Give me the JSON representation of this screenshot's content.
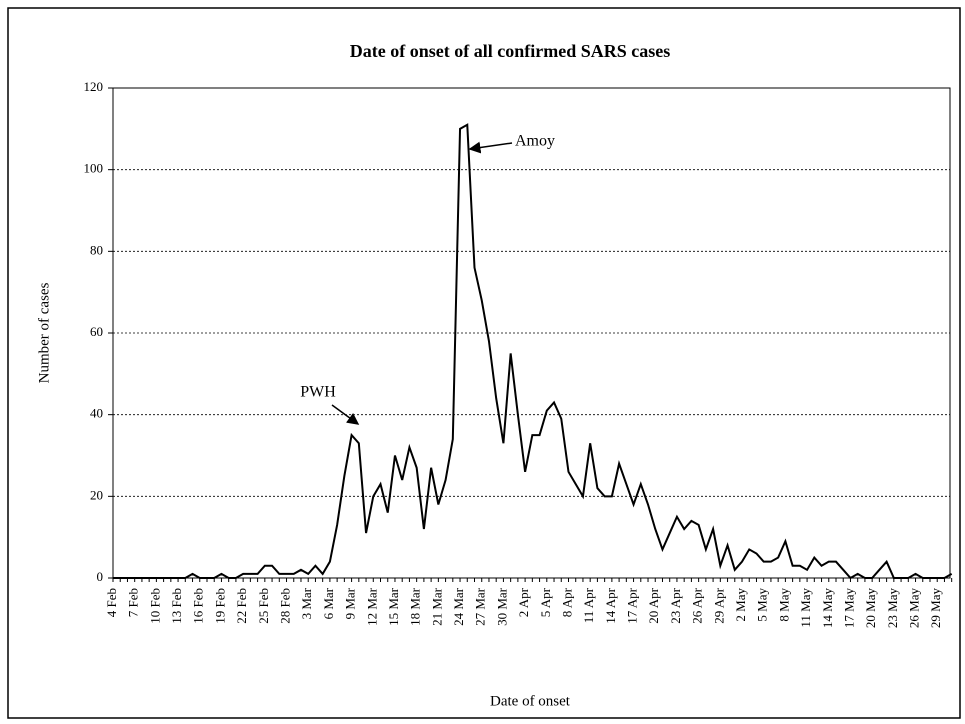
{
  "chart_data": {
    "type": "line",
    "title": "Date of onset of all confirmed SARS cases",
    "x_label": "Date of onset",
    "y_label": "Number of cases",
    "categories": [
      "4 Feb",
      null,
      null,
      "7 Feb",
      null,
      null,
      "10 Feb",
      null,
      null,
      "13 Feb",
      null,
      null,
      "16 Feb",
      null,
      null,
      "19 Feb",
      null,
      null,
      "22 Feb",
      null,
      null,
      "25 Feb",
      null,
      null,
      "28 Feb",
      null,
      null,
      "3 Mar",
      null,
      null,
      "6 Mar",
      null,
      null,
      "9 Mar",
      null,
      null,
      "12 Mar",
      null,
      null,
      "15 Mar",
      null,
      null,
      "18 Mar",
      null,
      null,
      "21 Mar",
      null,
      null,
      "24 Mar",
      null,
      null,
      "27 Mar",
      null,
      null,
      "30 Mar",
      null,
      null,
      "2 Apr",
      null,
      null,
      "5 Apr",
      null,
      null,
      "8 Apr",
      null,
      null,
      "11 Apr",
      null,
      null,
      "14 Apr",
      null,
      null,
      "17 Apr",
      null,
      null,
      "20 Apr",
      null,
      null,
      "23 Apr",
      null,
      null,
      "26 Apr",
      null,
      null,
      "29 Apr",
      null,
      null,
      "2 May",
      null,
      null,
      "5 May",
      null,
      null,
      "8 May",
      null,
      null,
      "11 May",
      null,
      null,
      "14 May",
      null,
      null,
      "17 May",
      null,
      null,
      "20 May",
      null,
      null,
      "23 May",
      null,
      null,
      "26 May",
      null,
      null,
      "29 May",
      null,
      null
    ],
    "series": [
      {
        "name": "Cases",
        "color": "#000000",
        "values": [
          0,
          0,
          0,
          0,
          0,
          0,
          0,
          0,
          0,
          0,
          0,
          1,
          0,
          0,
          0,
          1,
          0,
          0,
          1,
          1,
          1,
          3,
          3,
          1,
          1,
          1,
          2,
          1,
          3,
          1,
          4,
          13,
          25,
          35,
          33,
          11,
          20,
          23,
          16,
          30,
          24,
          32,
          27,
          12,
          27,
          18,
          24,
          34,
          110,
          111,
          76,
          68,
          58,
          44,
          33,
          55,
          40,
          26,
          35,
          35,
          41,
          43,
          39,
          26,
          23,
          20,
          33,
          22,
          20,
          20,
          28,
          23,
          18,
          23,
          18,
          12,
          7,
          11,
          15,
          12,
          14,
          13,
          7,
          12,
          3,
          8,
          2,
          4,
          7,
          6,
          4,
          4,
          5,
          9,
          3,
          3,
          2,
          5,
          3,
          4,
          4,
          2,
          0,
          1,
          0,
          0,
          2,
          4,
          0,
          0,
          0,
          1,
          0,
          0,
          0,
          0,
          1
        ]
      }
    ],
    "annotations": [
      {
        "text": "PWH"
      },
      {
        "text": "Amoy"
      }
    ],
    "ylim": [
      0,
      120
    ],
    "yticks": [
      0,
      20,
      40,
      60,
      80,
      100,
      120
    ],
    "grid": true
  }
}
